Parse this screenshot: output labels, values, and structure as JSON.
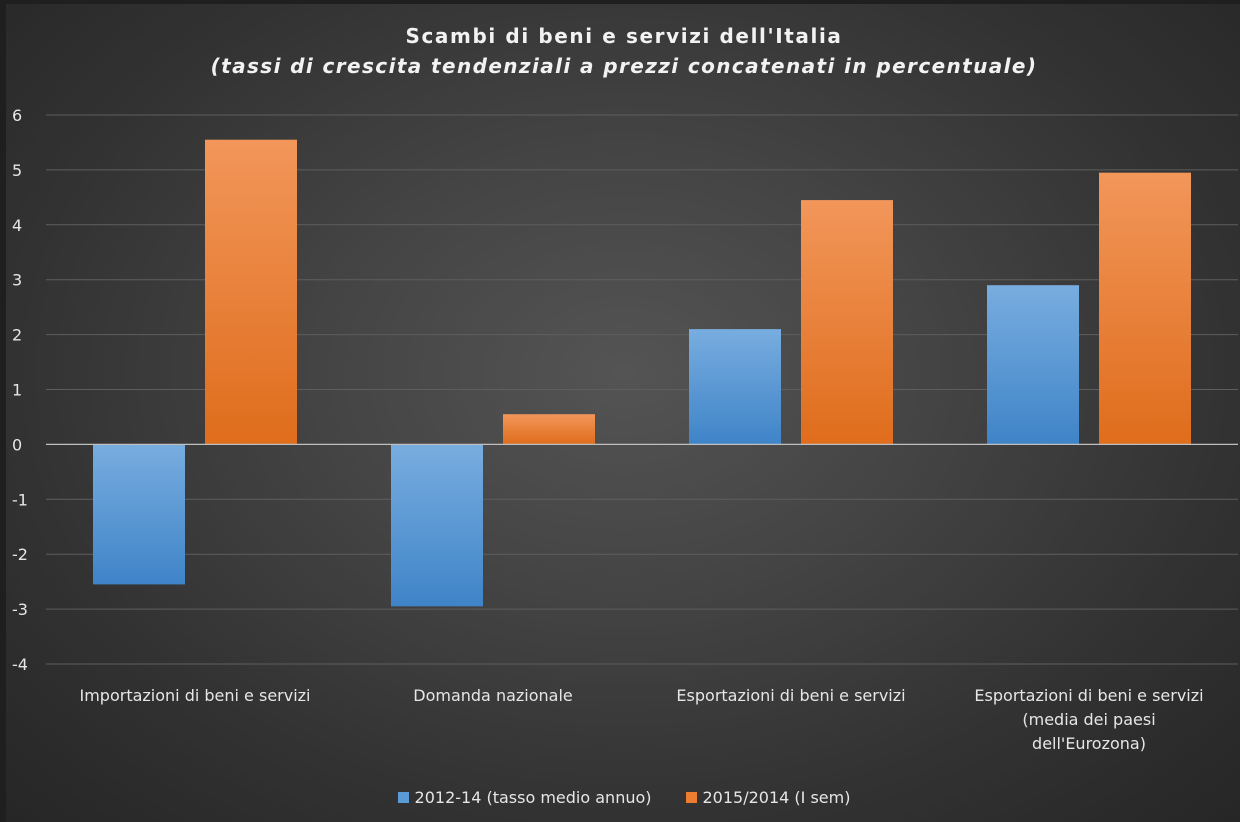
{
  "chart_data": {
    "type": "bar",
    "title": "Scambi di beni e servizi dell'Italia",
    "subtitle": "(tassi di crescita tendenziali a prezzi concatenati in percentuale)",
    "categories": [
      [
        "Importazioni di beni e servizi"
      ],
      [
        "Domanda nazionale"
      ],
      [
        "Esportazioni di beni e servizi"
      ],
      [
        "Esportazioni di beni e servizi",
        "(media dei paesi",
        "dell'Eurozona)"
      ]
    ],
    "series": [
      {
        "name": "2012-14 (tasso medio annuo)",
        "color": "#5b9bd5",
        "values": [
          -2.55,
          -2.95,
          2.1,
          2.9
        ]
      },
      {
        "name": "2015/2014 (I sem)",
        "color": "#ed7d31",
        "values": [
          5.55,
          0.55,
          4.45,
          4.95
        ]
      }
    ],
    "ylim": [
      -4,
      6
    ],
    "yticks": [
      "-4",
      "-3",
      "-2",
      "-1",
      "0",
      "1",
      "2",
      "3",
      "4",
      "5",
      "6"
    ],
    "grid": true,
    "legend_position": "bottom"
  }
}
